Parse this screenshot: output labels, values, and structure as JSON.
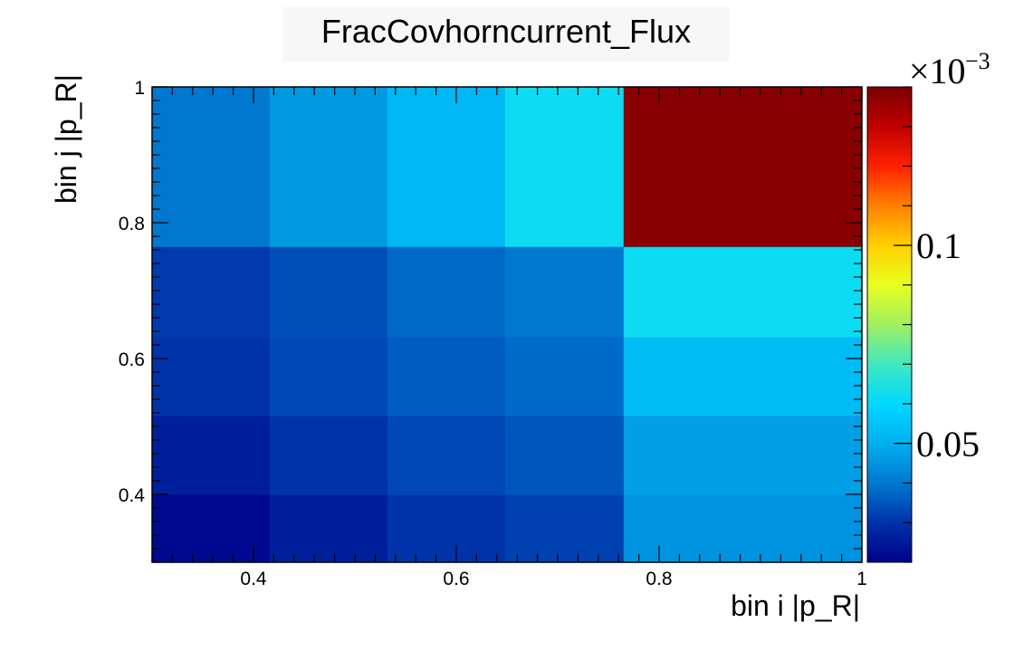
{
  "chart_data": {
    "type": "heatmap",
    "title": "FracCovhorncurrent_Flux",
    "xlabel": "bin i |p_R|",
    "ylabel": "bin j |p_R|",
    "xlim": [
      0.3,
      1.0
    ],
    "ylim": [
      0.3,
      1.0
    ],
    "x_edges": [
      0.3,
      0.416,
      0.532,
      0.648,
      0.765,
      1.0
    ],
    "y_edges": [
      0.3,
      0.4,
      0.516,
      0.632,
      0.765,
      1.0
    ],
    "values": [
      [
        0.022,
        0.026,
        0.03,
        0.032,
        0.045
      ],
      [
        0.026,
        0.03,
        0.033,
        0.035,
        0.047
      ],
      [
        0.03,
        0.033,
        0.036,
        0.038,
        0.053
      ],
      [
        0.031,
        0.034,
        0.038,
        0.04,
        0.062
      ],
      [
        0.04,
        0.046,
        0.052,
        0.062,
        0.138
      ]
    ],
    "x_ticks": [
      "0.4",
      "0.6",
      "0.8",
      "1"
    ],
    "y_ticks": [
      "0.4",
      "0.6",
      "0.8",
      "1"
    ],
    "z_ticks": [
      "0.05",
      "0.1"
    ],
    "z_range": [
      0.02,
      0.14
    ],
    "z_multiplier": "×10",
    "z_exponent": "−3",
    "colormap": [
      "#00008a",
      "#0033aa",
      "#0078d0",
      "#00b0f0",
      "#00d8ff",
      "#40e8c0",
      "#a0f060",
      "#e8ff20",
      "#ffd000",
      "#ff8000",
      "#ff2000",
      "#c00000",
      "#7a0000"
    ]
  }
}
